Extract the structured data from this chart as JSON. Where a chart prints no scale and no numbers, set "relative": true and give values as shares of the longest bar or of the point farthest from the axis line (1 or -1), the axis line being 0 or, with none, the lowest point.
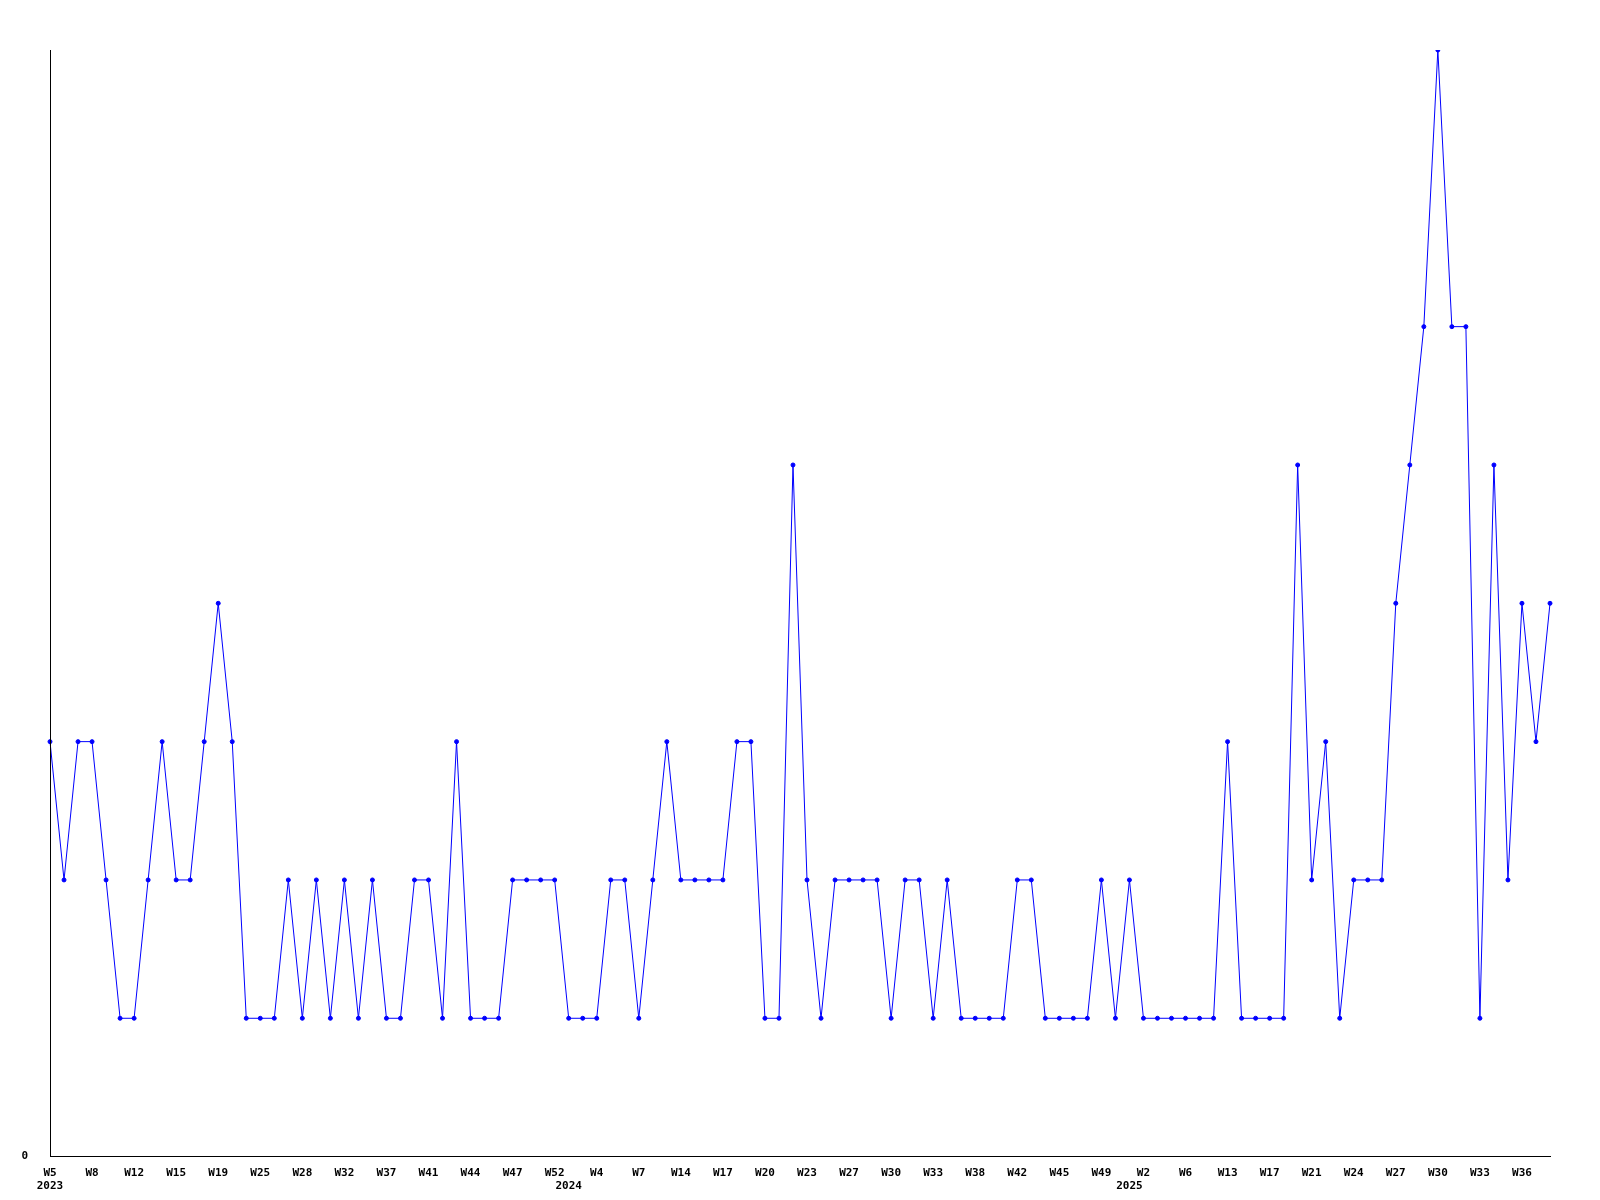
{
  "chart_data": {
    "type": "line",
    "relative": true,
    "color": "#0000ff",
    "marker": "circle",
    "annotations": [
      "0"
    ],
    "categories": [
      "W5\n2023",
      null,
      null,
      "W8",
      null,
      null,
      "W12",
      null,
      null,
      "W15",
      null,
      null,
      "W19",
      null,
      null,
      "W25",
      null,
      null,
      "W28",
      null,
      null,
      "W32",
      null,
      null,
      "W37",
      null,
      null,
      "W41",
      null,
      null,
      "W44",
      null,
      null,
      "W47",
      null,
      null,
      "W52",
      "\n2024",
      null,
      "W4",
      null,
      null,
      "W7",
      null,
      null,
      "W14",
      null,
      null,
      "W17",
      null,
      null,
      "W20",
      null,
      null,
      "W23",
      null,
      null,
      "W27",
      null,
      null,
      "W30",
      null,
      null,
      "W33",
      null,
      null,
      "W38",
      null,
      null,
      "W42",
      null,
      null,
      "W45",
      null,
      null,
      "W49",
      null,
      "\n2025",
      "W2",
      null,
      null,
      "W6",
      null,
      null,
      "W13",
      null,
      null,
      "W17",
      null,
      null,
      "W21",
      null,
      null,
      "W24",
      null,
      null,
      "W27",
      null,
      null,
      "W30",
      null,
      null,
      "W33",
      null,
      null,
      "W36",
      null,
      null
    ],
    "values": [
      0.375,
      0.25,
      0.375,
      0.375,
      0.25,
      0.125,
      0.125,
      0.25,
      0.375,
      0.25,
      0.25,
      0.375,
      0.5,
      0.375,
      0.125,
      0.125,
      0.125,
      0.25,
      0.125,
      0.25,
      0.125,
      0.25,
      0.125,
      0.25,
      0.125,
      0.125,
      0.25,
      0.25,
      0.125,
      0.375,
      0.125,
      0.125,
      0.125,
      0.25,
      0.25,
      0.25,
      0.25,
      0.125,
      0.125,
      0.125,
      0.25,
      0.25,
      0.125,
      0.25,
      0.375,
      0.25,
      0.25,
      0.25,
      0.25,
      0.375,
      0.375,
      0.125,
      0.125,
      0.625,
      0.25,
      0.125,
      0.25,
      0.25,
      0.25,
      0.25,
      0.125,
      0.25,
      0.25,
      0.125,
      0.25,
      0.125,
      0.125,
      0.125,
      0.125,
      0.25,
      0.25,
      0.125,
      0.125,
      0.125,
      0.125,
      0.25,
      0.125,
      0.25,
      0.125,
      0.125,
      0.125,
      0.125,
      0.125,
      0.125,
      0.375,
      0.125,
      0.125,
      0.125,
      0.125,
      0.625,
      0.25,
      0.375,
      0.125,
      0.25,
      0.25,
      0.25,
      0.5,
      0.625,
      0.75,
      1,
      0.75,
      0.75,
      0.125,
      0.625,
      0.25,
      0.5,
      0.375,
      0.5
    ]
  }
}
